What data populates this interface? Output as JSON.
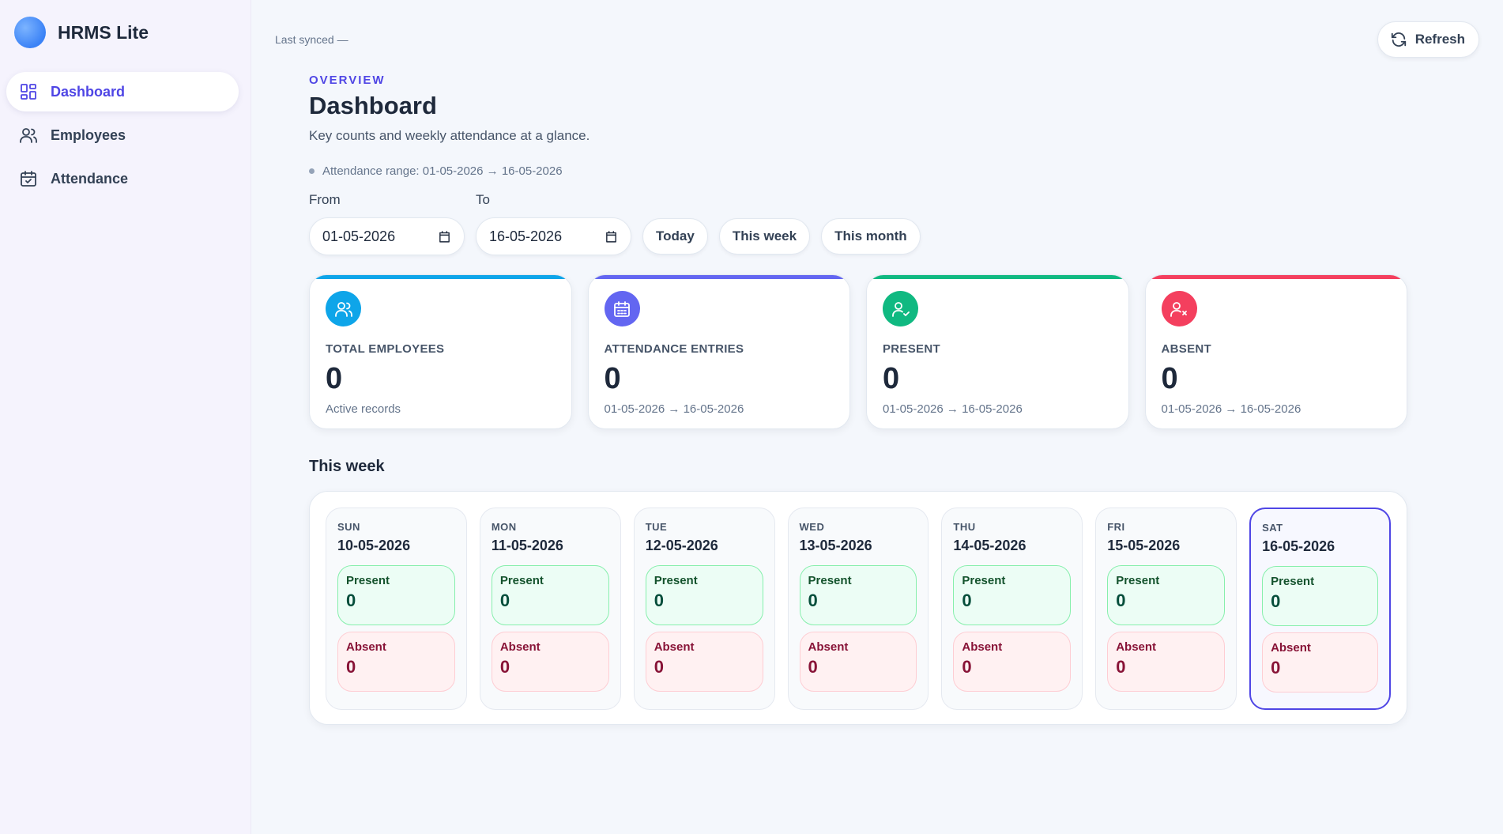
{
  "app": {
    "name": "HRMS Lite"
  },
  "sidebar": {
    "items": [
      {
        "label": "Dashboard",
        "icon": "dashboard-icon",
        "active": true
      },
      {
        "label": "Employees",
        "icon": "users-icon",
        "active": false
      },
      {
        "label": "Attendance",
        "icon": "calendar-check-icon",
        "active": false
      }
    ]
  },
  "header": {
    "last_synced": "Last synced —",
    "refresh_label": "Refresh"
  },
  "main": {
    "eyebrow": "OVERVIEW",
    "title": "Dashboard",
    "subtitle": "Key counts and weekly attendance at a glance.",
    "range_text": "Attendance range: 01-05-2026 → 16-05-2026"
  },
  "filters": {
    "from_label": "From",
    "from_value": "01-05-2026",
    "to_label": "To",
    "to_value": "16-05-2026",
    "presets": [
      "Today",
      "This week",
      "This month"
    ]
  },
  "stats": [
    {
      "label": "TOTAL EMPLOYEES",
      "value": "0",
      "sub": "Active records",
      "color": "#0ea5e9",
      "icon": "users-icon"
    },
    {
      "label": "ATTENDANCE ENTRIES",
      "value": "0",
      "sub": "01-05-2026 → 16-05-2026",
      "color": "#6366f1",
      "icon": "calendar-icon"
    },
    {
      "label": "PRESENT",
      "value": "0",
      "sub": "01-05-2026 → 16-05-2026",
      "color": "#10b981",
      "icon": "user-check-icon"
    },
    {
      "label": "ABSENT",
      "value": "0",
      "sub": "01-05-2026 → 16-05-2026",
      "color": "#f43f5e",
      "icon": "user-x-icon"
    }
  ],
  "week": {
    "title": "This week",
    "present_label": "Present",
    "absent_label": "Absent",
    "days": [
      {
        "name": "SUN",
        "date": "10-05-2026",
        "present": "0",
        "absent": "0"
      },
      {
        "name": "MON",
        "date": "11-05-2026",
        "present": "0",
        "absent": "0"
      },
      {
        "name": "TUE",
        "date": "12-05-2026",
        "present": "0",
        "absent": "0"
      },
      {
        "name": "WED",
        "date": "13-05-2026",
        "present": "0",
        "absent": "0"
      },
      {
        "name": "THU",
        "date": "14-05-2026",
        "present": "0",
        "absent": "0"
      },
      {
        "name": "FRI",
        "date": "15-05-2026",
        "present": "0",
        "absent": "0"
      },
      {
        "name": "SAT",
        "date": "16-05-2026",
        "present": "0",
        "absent": "0",
        "today": true
      }
    ]
  }
}
